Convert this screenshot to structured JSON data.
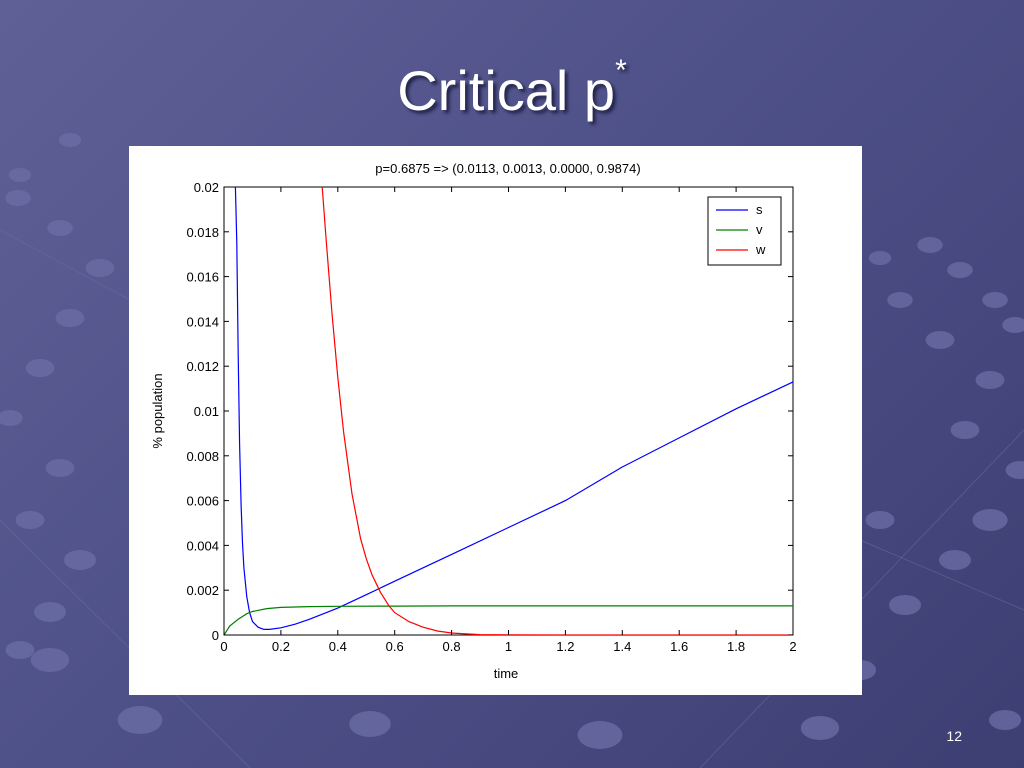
{
  "slide": {
    "title": "Critical p",
    "title_superscript": "*",
    "page_number": "12"
  },
  "chart_data": {
    "type": "line",
    "title": "p=0.6875 => (0.0113, 0.0013, 0.0000, 0.9874)",
    "xlabel": "time",
    "ylabel": "% population",
    "xlim": [
      0,
      2
    ],
    "ylim": [
      0,
      0.02
    ],
    "xticks": [
      0,
      0.2,
      0.4,
      0.6,
      0.8,
      1,
      1.2,
      1.4,
      1.6,
      1.8,
      2
    ],
    "yticks": [
      0,
      0.002,
      0.004,
      0.006,
      0.008,
      0.01,
      0.012,
      0.014,
      0.016,
      0.018,
      0.02
    ],
    "xtick_labels": [
      "0",
      "0.2",
      "0.4",
      "0.6",
      "0.8",
      "1",
      "1.2",
      "1.4",
      "1.6",
      "1.8",
      "2"
    ],
    "ytick_labels": [
      "0",
      "0.002",
      "0.004",
      "0.006",
      "0.008",
      "0.01",
      "0.012",
      "0.014",
      "0.016",
      "0.018",
      "0.02"
    ],
    "grid": false,
    "legend_position": "top-right",
    "series": [
      {
        "name": "s",
        "color": "#0000ff",
        "x": [
          0.04,
          0.045,
          0.05,
          0.055,
          0.06,
          0.065,
          0.07,
          0.08,
          0.09,
          0.1,
          0.12,
          0.14,
          0.16,
          0.2,
          0.25,
          0.3,
          0.35,
          0.4,
          0.5,
          0.6,
          0.7,
          0.8,
          1.0,
          1.2,
          1.4,
          1.6,
          1.8,
          2.0
        ],
        "y": [
          0.02,
          0.0175,
          0.0125,
          0.0085,
          0.0058,
          0.0041,
          0.003,
          0.0017,
          0.001,
          0.0006,
          0.00035,
          0.00025,
          0.00025,
          0.00032,
          0.00048,
          0.0007,
          0.00095,
          0.0012,
          0.0018,
          0.0024,
          0.003,
          0.0036,
          0.0048,
          0.006,
          0.0075,
          0.0088,
          0.0101,
          0.0113
        ]
      },
      {
        "name": "v",
        "color": "#008000",
        "x": [
          0,
          0.02,
          0.05,
          0.08,
          0.1,
          0.15,
          0.2,
          0.25,
          0.3,
          0.4,
          0.6,
          0.8,
          1.0,
          1.5,
          2.0
        ],
        "y": [
          0,
          0.0004,
          0.0007,
          0.00095,
          0.00105,
          0.00118,
          0.00123,
          0.00125,
          0.00127,
          0.00128,
          0.00129,
          0.0013,
          0.0013,
          0.0013,
          0.0013
        ]
      },
      {
        "name": "w",
        "color": "#ff0000",
        "x": [
          0.345,
          0.36,
          0.38,
          0.4,
          0.42,
          0.45,
          0.48,
          0.5,
          0.52,
          0.55,
          0.58,
          0.6,
          0.65,
          0.7,
          0.75,
          0.8,
          0.85,
          0.9,
          1.0,
          1.2,
          1.5,
          2.0
        ],
        "y": [
          0.02,
          0.0175,
          0.0143,
          0.0115,
          0.0091,
          0.0063,
          0.0043,
          0.0034,
          0.0027,
          0.0019,
          0.0013,
          0.001,
          0.0006,
          0.00035,
          0.00018,
          9e-05,
          5e-05,
          2e-05,
          1e-05,
          0,
          0,
          0
        ]
      }
    ]
  }
}
